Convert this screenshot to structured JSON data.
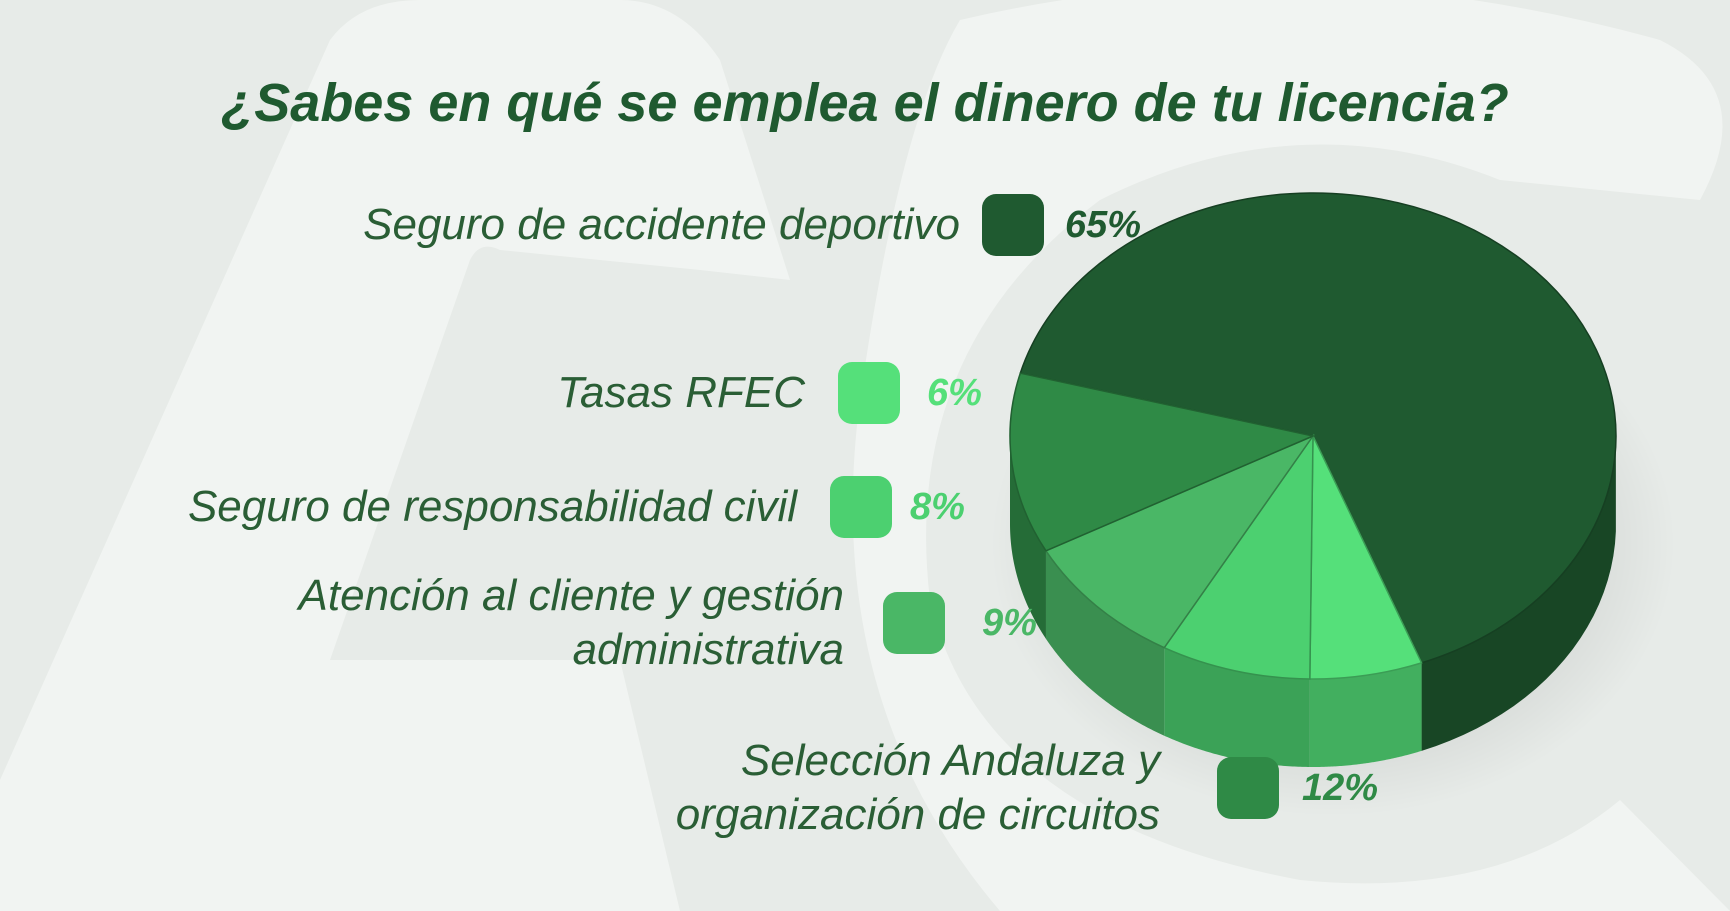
{
  "chart_data": {
    "type": "pie",
    "title": "¿Sabes en qué se emplea el dinero de tu licencia?",
    "categories": [
      "Seguro de accidente deportivo",
      "Tasas RFEC",
      "Seguro de responsabilidad civil",
      "Atención al cliente y gestión administrativa",
      "Selección Andaluza y organización de circuitos"
    ],
    "values": [
      65,
      6,
      8,
      9,
      12
    ],
    "value_labels": [
      "65%",
      "6%",
      "8%",
      "9%",
      "12%"
    ],
    "colors": [
      "#1f5a30",
      "#55e07a",
      "#4cd070",
      "#4ab766",
      "#2f8a46"
    ]
  }
}
